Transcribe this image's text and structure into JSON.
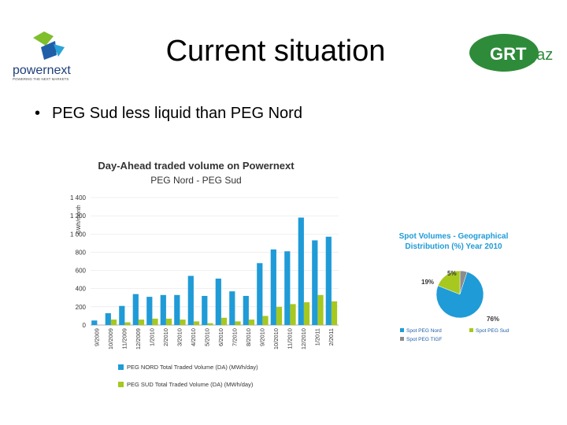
{
  "slide": {
    "title": "Current situation",
    "bullet": "PEG Sud less liquid than PEG Nord"
  },
  "logos": {
    "left": {
      "name": "powernext",
      "tagline": "POWERING THE NEXT MARKETS"
    },
    "right": {
      "name": "GRTgaz",
      "part1": "GRT",
      "part2": "gaz"
    }
  },
  "colors": {
    "nord": "#1f9bd7",
    "sud": "#a6c81f",
    "tigf": "#8c8c8c",
    "title_blue": "#1f5fa8",
    "grt_green": "#2e8b3a"
  },
  "chart_data": [
    {
      "type": "bar",
      "title": "Day-Ahead traded volume on Powernext",
      "subtitle": "PEG Nord - PEG Sud",
      "ylabel": "GWh/month",
      "ylim": [
        0,
        1400
      ],
      "yticks": [
        "0",
        "200",
        "400",
        "600",
        "800",
        "1 000",
        "1 200",
        "1 400"
      ],
      "categories": [
        "9/2009",
        "10/2009",
        "11/2009",
        "12/2009",
        "1/2010",
        "2/2010",
        "3/2010",
        "4/2010",
        "5/2010",
        "6/2010",
        "7/2010",
        "8/2010",
        "9/2010",
        "10/2010",
        "11/2010",
        "12/2010",
        "1/2011",
        "2/2011"
      ],
      "series": [
        {
          "name": "PEG NORD Total Traded Volume (DA) (MWh/day)",
          "values": [
            50,
            130,
            210,
            340,
            310,
            330,
            330,
            540,
            320,
            510,
            370,
            320,
            680,
            830,
            810,
            1180,
            930,
            970
          ]
        },
        {
          "name": "PEG SUD Total Traded Volume (DA) (MWh/day)",
          "values": [
            0,
            60,
            30,
            60,
            70,
            70,
            60,
            40,
            20,
            80,
            40,
            60,
            100,
            200,
            230,
            250,
            330,
            260
          ]
        }
      ],
      "legend": "bottom"
    },
    {
      "type": "pie",
      "title": "Spot Volumes - Geographical",
      "subtitle": "Distribution (%) Year 2010",
      "labels": [
        "Spot PEG Nord",
        "Spot PEG Sud",
        "Spot PEG TIGF"
      ],
      "values": [
        76,
        19,
        5
      ],
      "value_labels": [
        "76%",
        "19%",
        "5%"
      ],
      "legend": "bottom"
    }
  ]
}
